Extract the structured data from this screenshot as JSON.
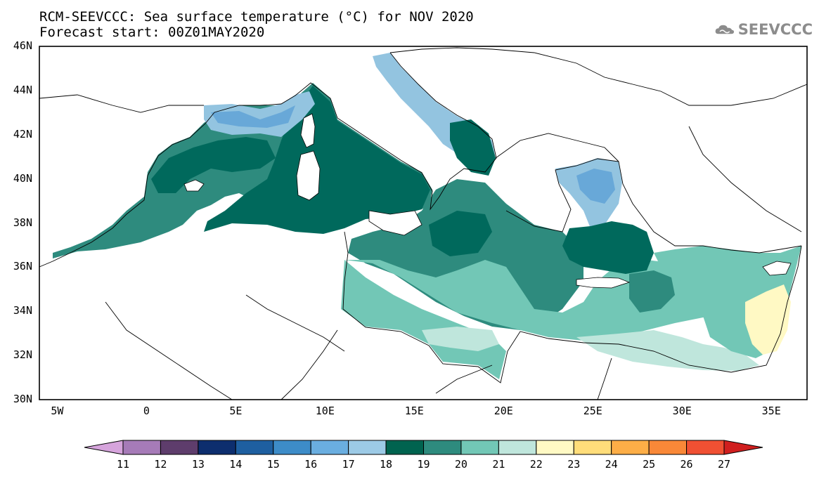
{
  "header": {
    "title_line1": "RCM-SEEVCCC: Sea surface temperature (°C) for NOV 2020",
    "title_line2": "Forecast start: 00Z01MAY2020",
    "logo_text": "SEEVCCC"
  },
  "map": {
    "y_ticks": [
      "46N",
      "44N",
      "42N",
      "40N",
      "38N",
      "36N",
      "34N",
      "32N",
      "30N"
    ],
    "x_ticks": [
      "5W",
      "0",
      "5E",
      "10E",
      "15E",
      "20E",
      "25E",
      "30E",
      "35E"
    ],
    "lat_range": [
      30,
      46
    ],
    "lon_range": [
      -6,
      37
    ],
    "colors": {
      "land": "#ffffff",
      "sea_19": "#00695c",
      "sea_20": "#2e8b7e",
      "sea_21": "#72c7b6",
      "sea_22": "#bfe6dc",
      "sea_17": "#93c4e0",
      "sea_16": "#68a8d8",
      "sea_23": "#fff9c4"
    }
  },
  "colorbar": {
    "labels": [
      "11",
      "12",
      "13",
      "14",
      "15",
      "16",
      "17",
      "18",
      "19",
      "20",
      "21",
      "22",
      "23",
      "24",
      "25",
      "26",
      "27"
    ],
    "colors": [
      "#d6a4dc",
      "#a67bb8",
      "#5e3d6c",
      "#0d2e6e",
      "#1e5fa0",
      "#3d8cc8",
      "#6aaee0",
      "#9ccae6",
      "#00634f",
      "#2e8b7e",
      "#72c7b6",
      "#bfe6dc",
      "#fff9c4",
      "#ffdd7a",
      "#fdae47",
      "#f98838",
      "#f05033",
      "#d01f1f"
    ]
  }
}
